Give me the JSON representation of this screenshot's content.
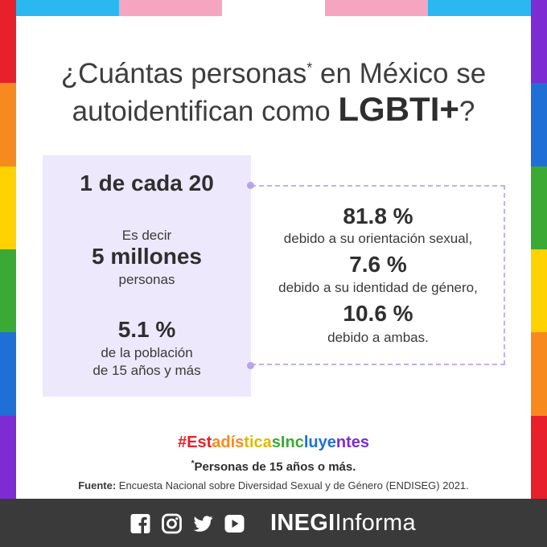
{
  "colors": {
    "top_bar": [
      "#2bb8f0",
      "#f6a5c0",
      "#ffffff",
      "#f6a5c0",
      "#2bb8f0"
    ],
    "rainbow_left": [
      "#e8202b",
      "#f78a1e",
      "#ffd200",
      "#3aaa35",
      "#1f6fd6",
      "#7d2bd3"
    ],
    "rainbow_right": [
      "#7d2bd3",
      "#1f6fd6",
      "#3aaa35",
      "#ffd200",
      "#f78a1e",
      "#e8202b"
    ],
    "box_bg": "#ede8fb",
    "dash": "#c2b0ee",
    "footer_bg": "#3a3a3a"
  },
  "title": {
    "line1_pre": "¿Cuántas personas",
    "star": "*",
    "line1_post": " en México se",
    "line2_pre": "autoidentifican como ",
    "line2_strong": "LGBTI+",
    "line2_post": "?"
  },
  "left_panel": {
    "ratio": "1 de cada 20",
    "es_decir": "Es decir",
    "millones": "5 millones",
    "personas": "personas",
    "percent": "5.1 %",
    "de_la_poblacion": "de la población",
    "edad": "de 15 años y más"
  },
  "right_panel": [
    {
      "value": "81.8 %",
      "desc": "debido a su orientación sexual,"
    },
    {
      "value": "7.6 %",
      "desc": "debido a su identidad de género,"
    },
    {
      "value": "10.6 %",
      "desc": "debido a ambas."
    }
  ],
  "hashtag": {
    "text": "#EstadísticasIncluyentes",
    "letter_colors": [
      "#e8202b",
      "#f78a1e",
      "#e0b800",
      "#3aaa35",
      "#1f6fd6",
      "#7d2bd3"
    ]
  },
  "footnote": {
    "star": "*",
    "text": "Personas de 15 años o más."
  },
  "source": {
    "label": "Fuente:",
    "text": " Encuesta Nacional sobre Diversidad Sexual y de Género (ENDISEG) 2021."
  },
  "footer": {
    "icons": [
      "facebook-icon",
      "instagram-icon",
      "twitter-icon",
      "youtube-icon"
    ],
    "brand_bold": "INEGI",
    "brand_light": "Informa"
  }
}
